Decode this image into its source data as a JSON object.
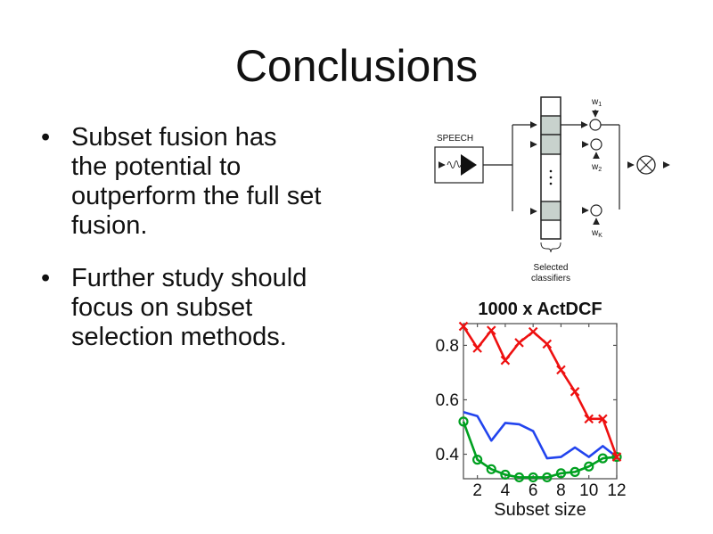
{
  "slide": {
    "title": "Conclusions",
    "bullet_char": "•",
    "bullets": [
      {
        "text": "Subset fusion has\nthe potential to\noutperform the full set\nfusion."
      },
      {
        "text": "Further study should\nfocus on subset\nselection methods."
      }
    ]
  },
  "diagram": {
    "speech_label": "SPEECH",
    "weights": [
      {
        "base": "w",
        "sub": "1"
      },
      {
        "base": "w",
        "sub": "2"
      },
      {
        "base": "w",
        "sub": "K"
      }
    ],
    "caption_line1": "Selected",
    "caption_line2": "classifiers",
    "box_fill": "#c8d2cd",
    "line_color": "#222222"
  },
  "chart_data": {
    "type": "line",
    "title": "1000 x ActDCF",
    "xlabel": "Subset size",
    "ylabel": "",
    "x": [
      1,
      2,
      3,
      4,
      5,
      6,
      7,
      8,
      9,
      10,
      11,
      12
    ],
    "xlim": [
      1,
      12
    ],
    "ylim": [
      0.31,
      0.88
    ],
    "xticks": [
      2,
      4,
      6,
      8,
      10,
      12
    ],
    "yticks": [
      0.4,
      0.6,
      0.8
    ],
    "grid": false,
    "legend": "none",
    "series": [
      {
        "name": "blue-line",
        "color": "#2244ee",
        "marker": "none",
        "values": [
          0.555,
          0.54,
          0.45,
          0.515,
          0.51,
          0.485,
          0.385,
          0.39,
          0.425,
          0.39,
          0.43,
          0.39
        ]
      },
      {
        "name": "green-o",
        "color": "#00a020",
        "marker": "o",
        "values": [
          0.52,
          0.38,
          0.345,
          0.325,
          0.315,
          0.315,
          0.315,
          0.33,
          0.335,
          0.355,
          0.385,
          0.39
        ]
      },
      {
        "name": "red-x",
        "color": "#ee1010",
        "marker": "x",
        "values": [
          0.87,
          0.79,
          0.855,
          0.745,
          0.81,
          0.85,
          0.805,
          0.71,
          0.63,
          0.53,
          0.53,
          0.39
        ]
      }
    ]
  }
}
